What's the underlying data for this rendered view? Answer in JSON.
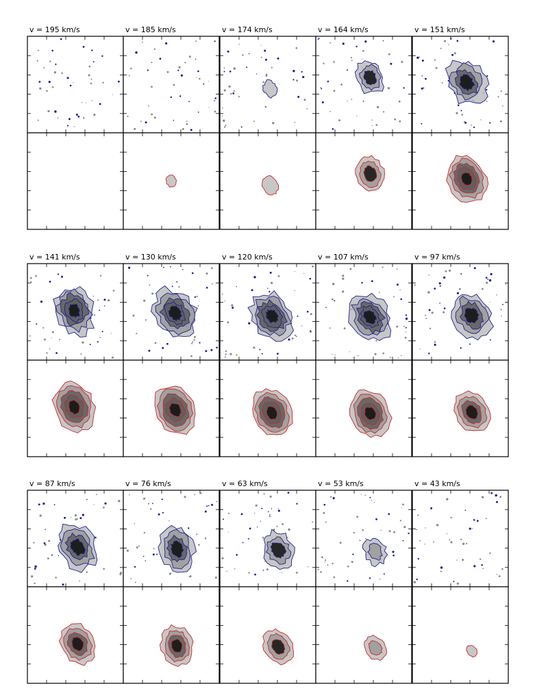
{
  "figure": {
    "panel_labels": [
      "v = 195 km/s",
      "v = 185 km/s",
      "v = 174 km/s",
      "v = 164 km/s",
      "v = 151 km/s",
      "v = 141 km/s",
      "v = 130 km/s",
      "v = 120 km/s",
      "v = 107 km/s",
      "v = 97 km/s",
      "v = 87 km/s",
      "v = 76 km/s",
      "v = 63 km/s",
      "v = 53 km/s",
      "v = 43 km/s"
    ]
  },
  "chart_data": {
    "type": "channel-map",
    "velocity_unit": "km/s",
    "velocities": [
      195,
      185,
      174,
      164,
      151,
      141,
      130,
      120,
      107,
      97,
      87,
      76,
      63,
      53,
      43
    ],
    "rows": [
      "observed (blue contours)",
      "model (red contours)"
    ],
    "colors": {
      "observed_contour": "#1f1f8f",
      "model_contour": "#c62828",
      "emission_fill": "#777777",
      "peak_fill": "#111111"
    },
    "relative_emission": {
      "observed": [
        0.0,
        0.0,
        0.15,
        0.55,
        0.85,
        0.9,
        0.95,
        0.9,
        0.9,
        0.85,
        0.85,
        0.8,
        0.65,
        0.4,
        0.0
      ],
      "model": [
        0.0,
        0.05,
        0.2,
        0.6,
        0.9,
        0.95,
        0.95,
        0.9,
        0.9,
        0.75,
        0.75,
        0.7,
        0.6,
        0.35,
        0.04
      ]
    },
    "source_offset": {
      "dx": [
        0,
        0,
        0.2,
        0.55,
        0.55,
        -0.1,
        0.35,
        0.35,
        0.55,
        1.0,
        0.2,
        0.5,
        0.9,
        1.0,
        1.0
      ],
      "dy": [
        0,
        0,
        0.3,
        -0.5,
        -0.15,
        -0.1,
        0.1,
        0.3,
        0.35,
        0.25,
        0.6,
        0.75,
        0.8,
        0.9,
        1.1
      ]
    },
    "grid": false
  }
}
